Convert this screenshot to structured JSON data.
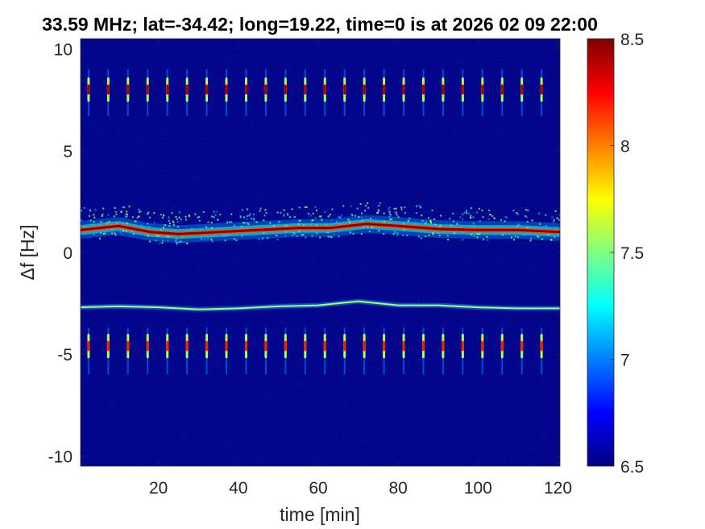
{
  "chart_data": {
    "type": "heatmap",
    "title": "33.59 MHz;  lat=-34.42; long=19.22, time=0 is at 2026 02 09 22:00",
    "xlabel": "time [min]",
    "ylabel": "Δf [Hz]",
    "xlim": [
      0.5,
      120.5
    ],
    "ylim": [
      -10.5,
      10.5
    ],
    "x_ticks": [
      20,
      40,
      60,
      80,
      100,
      120
    ],
    "y_ticks": [
      -10,
      -5,
      0,
      5,
      10
    ],
    "colorbar": {
      "range": [
        6.5,
        8.5
      ],
      "ticks": [
        6.5,
        7,
        7.5,
        8,
        8.5
      ],
      "colormap": "jet"
    },
    "background_value": 6.5,
    "features": [
      {
        "name": "main carrier",
        "type": "line",
        "peak_value": 8.5,
        "spread_value": 7.3,
        "points": [
          [
            0.5,
            1.1
          ],
          [
            10,
            1.3
          ],
          [
            18,
            1.0
          ],
          [
            25,
            0.9
          ],
          [
            35,
            1.0
          ],
          [
            45,
            1.1
          ],
          [
            55,
            1.2
          ],
          [
            63,
            1.2
          ],
          [
            72,
            1.4
          ],
          [
            80,
            1.3
          ],
          [
            90,
            1.15
          ],
          [
            100,
            1.1
          ],
          [
            110,
            1.1
          ],
          [
            120.5,
            1.0
          ]
        ]
      },
      {
        "name": "secondary line",
        "type": "line",
        "peak_value": 7.6,
        "points": [
          [
            0.5,
            -2.7
          ],
          [
            10,
            -2.65
          ],
          [
            20,
            -2.7
          ],
          [
            30,
            -2.8
          ],
          [
            40,
            -2.75
          ],
          [
            50,
            -2.65
          ],
          [
            60,
            -2.6
          ],
          [
            70,
            -2.4
          ],
          [
            80,
            -2.6
          ],
          [
            90,
            -2.6
          ],
          [
            100,
            -2.7
          ],
          [
            110,
            -2.75
          ],
          [
            120.5,
            -2.75
          ]
        ]
      },
      {
        "name": "upper pulse train",
        "type": "pulses",
        "center": 8.0,
        "extent": [
          6.7,
          9.0
        ],
        "period_min": 4.93,
        "first_min": 2.5,
        "peak_value": 8.4
      },
      {
        "name": "lower pulse train",
        "type": "pulses",
        "center": -4.6,
        "extent": [
          -6.0,
          -3.7
        ],
        "period_min": 4.93,
        "first_min": 2.5,
        "peak_value": 8.2
      }
    ]
  }
}
